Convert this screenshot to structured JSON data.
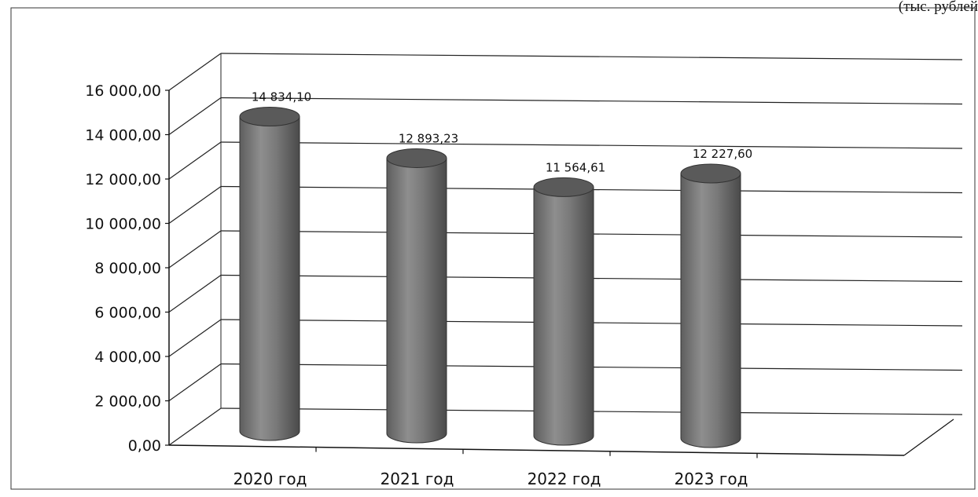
{
  "units_label": "(тыс. рублей",
  "chart_data": {
    "type": "bar",
    "shape": "cylinder-3d",
    "categories": [
      "2020 год",
      "2021 год",
      "2022 год",
      "2023 год"
    ],
    "values": [
      14834.1,
      12893.23,
      11564.61,
      12227.6
    ],
    "data_labels": [
      "14 834,10",
      "12 893,23",
      "11 564,61",
      "12 227,60"
    ],
    "y_ticks": [
      "0,00",
      "2 000,00",
      "4 000,00",
      "6 000,00",
      "8 000,00",
      "10 000,00",
      "12 000,00",
      "14 000,00",
      "16 000,00"
    ],
    "ylim": [
      0,
      16000
    ],
    "ystep": 2000,
    "grid": true,
    "legend": "none",
    "bar_color": "#7d7d7d"
  }
}
